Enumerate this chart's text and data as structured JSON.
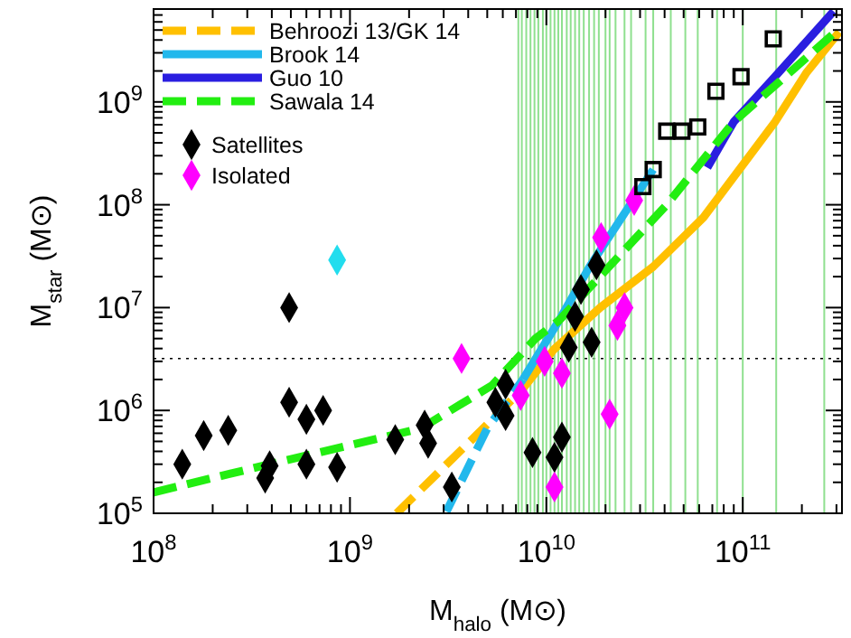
{
  "chart_data": {
    "type": "scatter",
    "xlabel": "M$_{halo}$  (M⊙)",
    "ylabel": "M$_{star}$  (M⊙)",
    "xlim": [
      100000000.0,
      320000000000.0
    ],
    "ylim": [
      100000.0,
      8000000000.0
    ],
    "xticks": [
      {
        "value": 100000000.0,
        "label": "10$^{8}$"
      },
      {
        "value": 200000000.0,
        "label": null
      },
      {
        "value": 300000000.0,
        "label": null
      },
      {
        "value": 400000000.0,
        "label": null
      },
      {
        "value": 500000000.0,
        "label": null
      },
      {
        "value": 600000000.0,
        "label": null
      },
      {
        "value": 700000000.0,
        "label": null
      },
      {
        "value": 800000000.0,
        "label": null
      },
      {
        "value": 900000000.0,
        "label": null
      },
      {
        "value": 1000000000.0,
        "label": "10$^{9}$"
      },
      {
        "value": 2000000000.0,
        "label": null
      },
      {
        "value": 3000000000.0,
        "label": null
      },
      {
        "value": 4000000000.0,
        "label": null
      },
      {
        "value": 5000000000.0,
        "label": null
      },
      {
        "value": 6000000000.0,
        "label": null
      },
      {
        "value": 7000000000.0,
        "label": null
      },
      {
        "value": 8000000000.0,
        "label": null
      },
      {
        "value": 9000000000.0,
        "label": null
      },
      {
        "value": 10000000000.0,
        "label": "10$^{10}$"
      },
      {
        "value": 20000000000.0,
        "label": null
      },
      {
        "value": 30000000000.0,
        "label": null
      },
      {
        "value": 40000000000.0,
        "label": null
      },
      {
        "value": 50000000000.0,
        "label": null
      },
      {
        "value": 60000000000.0,
        "label": null
      },
      {
        "value": 70000000000.0,
        "label": null
      },
      {
        "value": 80000000000.0,
        "label": null
      },
      {
        "value": 90000000000.0,
        "label": null
      },
      {
        "value": 100000000000.0,
        "label": "10$^{11}$"
      },
      {
        "value": 200000000000.0,
        "label": null
      },
      {
        "value": 300000000000.0,
        "label": null
      }
    ],
    "yticks": [
      {
        "value": 100000.0,
        "label": "10$^{5}$"
      },
      {
        "value": 200000.0,
        "label": null
      },
      {
        "value": 300000.0,
        "label": null
      },
      {
        "value": 400000.0,
        "label": null
      },
      {
        "value": 500000.0,
        "label": null
      },
      {
        "value": 600000.0,
        "label": null
      },
      {
        "value": 700000.0,
        "label": null
      },
      {
        "value": 800000.0,
        "label": null
      },
      {
        "value": 900000.0,
        "label": null
      },
      {
        "value": 1000000.0,
        "label": "10$^{6}$"
      },
      {
        "value": 2000000.0,
        "label": null
      },
      {
        "value": 3000000.0,
        "label": null
      },
      {
        "value": 4000000.0,
        "label": null
      },
      {
        "value": 5000000.0,
        "label": null
      },
      {
        "value": 6000000.0,
        "label": null
      },
      {
        "value": 7000000.0,
        "label": null
      },
      {
        "value": 8000000.0,
        "label": null
      },
      {
        "value": 9000000.0,
        "label": null
      },
      {
        "value": 10000000.0,
        "label": "10$^{7}$"
      },
      {
        "value": 20000000.0,
        "label": null
      },
      {
        "value": 30000000.0,
        "label": null
      },
      {
        "value": 40000000.0,
        "label": null
      },
      {
        "value": 50000000.0,
        "label": null
      },
      {
        "value": 60000000.0,
        "label": null
      },
      {
        "value": 70000000.0,
        "label": null
      },
      {
        "value": 80000000.0,
        "label": null
      },
      {
        "value": 90000000.0,
        "label": null
      },
      {
        "value": 100000000.0,
        "label": "10$^{8}$"
      },
      {
        "value": 200000000.0,
        "label": null
      },
      {
        "value": 300000000.0,
        "label": null
      },
      {
        "value": 400000000.0,
        "label": null
      },
      {
        "value": 500000000.0,
        "label": null
      },
      {
        "value": 600000000.0,
        "label": null
      },
      {
        "value": 700000000.0,
        "label": null
      },
      {
        "value": 800000000.0,
        "label": null
      },
      {
        "value": 900000000.0,
        "label": null
      },
      {
        "value": 1000000000.0,
        "label": "10$^{9}$"
      },
      {
        "value": 2000000000.0,
        "label": null
      },
      {
        "value": 3000000000.0,
        "label": null
      },
      {
        "value": 4000000000.0,
        "label": null
      },
      {
        "value": 5000000000.0,
        "label": null
      },
      {
        "value": 6000000000.0,
        "label": null
      },
      {
        "value": 7000000000.0,
        "label": null
      },
      {
        "value": 8000000000.0,
        "label": null
      }
    ],
    "log": "xy",
    "legend": "top left",
    "ref_lines": [
      {
        "axis": "y",
        "value": 3200000.0,
        "color": "#000000",
        "line_style": "dotted"
      },
      {
        "axis": "x",
        "value": 7200000000.0,
        "color": "#8fe08f"
      },
      {
        "axis": "x",
        "value": 7500000000.0,
        "color": "#8fe08f"
      },
      {
        "axis": "x",
        "value": 7900000000.0,
        "color": "#8fe08f"
      },
      {
        "axis": "x",
        "value": 8300000000.0,
        "color": "#8fe08f"
      },
      {
        "axis": "x",
        "value": 8700000000.0,
        "color": "#8fe08f"
      },
      {
        "axis": "x",
        "value": 9100000000.0,
        "color": "#8fe08f"
      },
      {
        "axis": "x",
        "value": 9600000000.0,
        "color": "#8fe08f"
      },
      {
        "axis": "x",
        "value": 10000000000.0,
        "color": "#8fe08f"
      },
      {
        "axis": "x",
        "value": 10500000000.0,
        "color": "#8fe08f"
      },
      {
        "axis": "x",
        "value": 11000000000.0,
        "color": "#8fe08f"
      },
      {
        "axis": "x",
        "value": 11500000000.0,
        "color": "#8fe08f"
      },
      {
        "axis": "x",
        "value": 12000000000.0,
        "color": "#8fe08f"
      },
      {
        "axis": "x",
        "value": 12700000000.0,
        "color": "#8fe08f"
      },
      {
        "axis": "x",
        "value": 13300000000.0,
        "color": "#8fe08f"
      },
      {
        "axis": "x",
        "value": 14000000000.0,
        "color": "#8fe08f"
      },
      {
        "axis": "x",
        "value": 14700000000.0,
        "color": "#8fe08f"
      },
      {
        "axis": "x",
        "value": 15500000000.0,
        "color": "#8fe08f"
      },
      {
        "axis": "x",
        "value": 16500000000.0,
        "color": "#8fe08f"
      },
      {
        "axis": "x",
        "value": 17500000000.0,
        "color": "#8fe08f"
      },
      {
        "axis": "x",
        "value": 18500000000.0,
        "color": "#8fe08f"
      },
      {
        "axis": "x",
        "value": 20000000000.0,
        "color": "#8fe08f"
      },
      {
        "axis": "x",
        "value": 21000000000.0,
        "color": "#8fe08f"
      },
      {
        "axis": "x",
        "value": 22500000000.0,
        "color": "#8fe08f"
      },
      {
        "axis": "x",
        "value": 25000000000.0,
        "color": "#8fe08f"
      },
      {
        "axis": "x",
        "value": 27000000000.0,
        "color": "#8fe08f"
      },
      {
        "axis": "x",
        "value": 32000000000.0,
        "color": "#8fe08f"
      },
      {
        "axis": "x",
        "value": 35000000000.0,
        "color": "#8fe08f"
      },
      {
        "axis": "x",
        "value": 43000000000.0,
        "color": "#8fe08f"
      },
      {
        "axis": "x",
        "value": 51000000000.0,
        "color": "#8fe08f"
      },
      {
        "axis": "x",
        "value": 59000000000.0,
        "color": "#8fe08f"
      },
      {
        "axis": "x",
        "value": 74000000000.0,
        "color": "#8fe08f"
      },
      {
        "axis": "x",
        "value": 100000000000.0,
        "color": "#8fe08f"
      },
      {
        "axis": "x",
        "value": 148000000000.0,
        "color": "#8fe08f"
      },
      {
        "axis": "x",
        "value": 260000000000.0,
        "color": "#8fe08f"
      }
    ],
    "series": [
      {
        "name": "Behroozi 13/GK 14",
        "type": "line",
        "line_style": "dashed",
        "color": "#ffc000",
        "x": [
          1730000000.0,
          4300000000.0,
          7600000000.0
        ],
        "values": [
          100000.0,
          550000.0,
          1630000.0
        ]
      },
      {
        "type": "line",
        "line_style": "solid",
        "color": "#ffc000",
        "x": [
          7600000000.0,
          10900000000.0,
          18800000000.0,
          35000000000.0,
          63000000000.0,
          146000000000.0,
          210000000000.0,
          310000000000.0
        ],
        "values": [
          1630000.0,
          3900000.0,
          10000000.0,
          25000000.0,
          75000000.0,
          640000000.0,
          1900000000.0,
          4800000000.0
        ]
      },
      {
        "type": "line",
        "line_style": "dashed",
        "color": "#22b8ec",
        "x": [
          3100000000.0,
          5000000000.0,
          7600000000.0
        ],
        "values": [
          104000.0,
          670000.0,
          2000000.0
        ]
      },
      {
        "name": "Brook 14",
        "type": "line",
        "line_style": "solid",
        "color": "#22b8ec",
        "x": [
          7600000000.0,
          11600000000.0,
          16600000000.0,
          22000000000.0,
          35000000000.0
        ],
        "values": [
          2000000.0,
          7500000.0,
          25000000.0,
          57000000.0,
          220000000.0
        ]
      },
      {
        "name": "Guo 10",
        "type": "line",
        "line_style": "solid",
        "color": "#2a1ee0",
        "x": [
          66000000000.0,
          90000000000.0,
          146000000000.0,
          290000000000.0
        ],
        "values": [
          230000000.0,
          640000000.0,
          1760000000.0,
          7600000000.0
        ]
      },
      {
        "name": "Sawala 14",
        "type": "line",
        "line_style": "dashed",
        "color": "#22ee11",
        "x": [
          100000000.0,
          390000000.0,
          2300000000.0,
          5300000000.0,
          8800000000.0,
          11600000000.0,
          41000000000.0,
          90000000000.0,
          290000000000.0
        ],
        "values": [
          160000.0,
          300000.0,
          670000.0,
          1760000.0,
          5000000.0,
          7500000.0,
          100000000.0,
          640000000.0,
          4600000000.0
        ]
      },
      {
        "name": "Satellites",
        "marker": "diamond",
        "color": "#000000",
        "x": [
          140000000.0,
          180000000.0,
          240000000.0,
          490000000.0,
          490000000.0,
          600000000.0,
          730000000.0,
          370000000.0,
          390000000.0,
          600000000.0,
          860000000.0,
          1700000000.0,
          2400000000.0,
          2500000000.0,
          3300000000.0,
          6200000000.0,
          5500000000.0,
          6200000000.0,
          8500000000.0,
          11000000000.0,
          12000000000.0,
          14000000000.0,
          13000000000.0,
          17000000000.0,
          15000000000.0,
          18000000000.0
        ],
        "values": [
          300000.0,
          570000.0,
          640000.0,
          10000000.0,
          1200000.0,
          820000.0,
          1000000.0,
          220000.0,
          290000.0,
          300000.0,
          280000.0,
          520000.0,
          720000.0,
          480000.0,
          180000.0,
          1800000.0,
          1200000.0,
          890000.0,
          390000.0,
          350000.0,
          550000.0,
          8200000.0,
          4100000.0,
          4600000.0,
          15000000.0,
          26000000.0
        ]
      },
      {
        "name": "Isolated",
        "marker": "diamond",
        "color": "#ff00ff",
        "x": [
          3700000000.0,
          7400000000.0,
          9800000000.0,
          12000000000.0,
          21000000000.0,
          11000000000.0,
          23000000000.0,
          25000000000.0,
          19000000000.0,
          28000000000.0
        ],
        "values": [
          3200000.0,
          1400000.0,
          3000000.0,
          2300000.0,
          920000.0,
          180000.0,
          6700000.0,
          10000000.0,
          48000000.0,
          110000000.0
        ]
      },
      {
        "marker": "diamond",
        "color": "#22ddee",
        "x": [
          860000000.0
        ],
        "values": [
          29000000.0
        ]
      },
      {
        "marker": "square",
        "color": "#000000",
        "x": [
          31000000000.0,
          35000000000.0,
          41000000000.0,
          49000000000.0,
          59000000000.0,
          73000000000.0,
          98000000000.0,
          143000000000.0
        ],
        "values": [
          150000000.0,
          220000000.0,
          520000000.0,
          520000000.0,
          570000000.0,
          1270000000.0,
          1760000000.0,
          4100000000.0
        ]
      }
    ]
  }
}
